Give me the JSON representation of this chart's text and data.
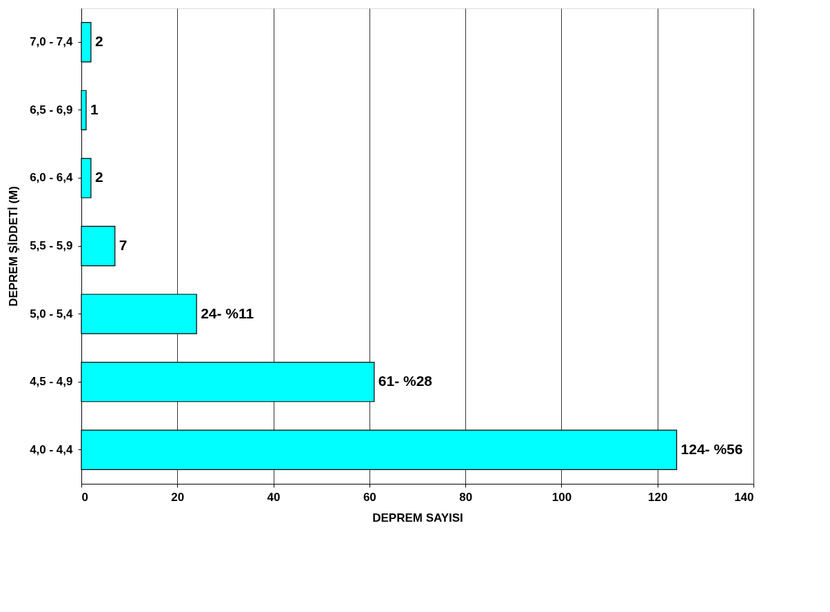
{
  "chart_data": {
    "type": "bar",
    "orientation": "horizontal",
    "xlabel": "DEPREM SAYISI",
    "ylabel": "DEPREM ŞİDDETİ (M)",
    "categories": [
      "7,0 - 7,4",
      "6,5 - 6,9",
      "6,0 - 6,4",
      "5,5 - 5,9",
      "5,0 - 5,4",
      "4,5 - 4,9",
      "4,0 - 4,4"
    ],
    "values": [
      2,
      1,
      2,
      7,
      24,
      61,
      124
    ],
    "value_labels": [
      "2",
      "1",
      "2",
      "7",
      "24- %11",
      "61- %28",
      "124- %56"
    ],
    "color": "#00ffff",
    "xlim": [
      0,
      140
    ],
    "xticks": [
      0,
      20,
      40,
      60,
      80,
      100,
      120,
      140
    ],
    "grid": "x"
  }
}
